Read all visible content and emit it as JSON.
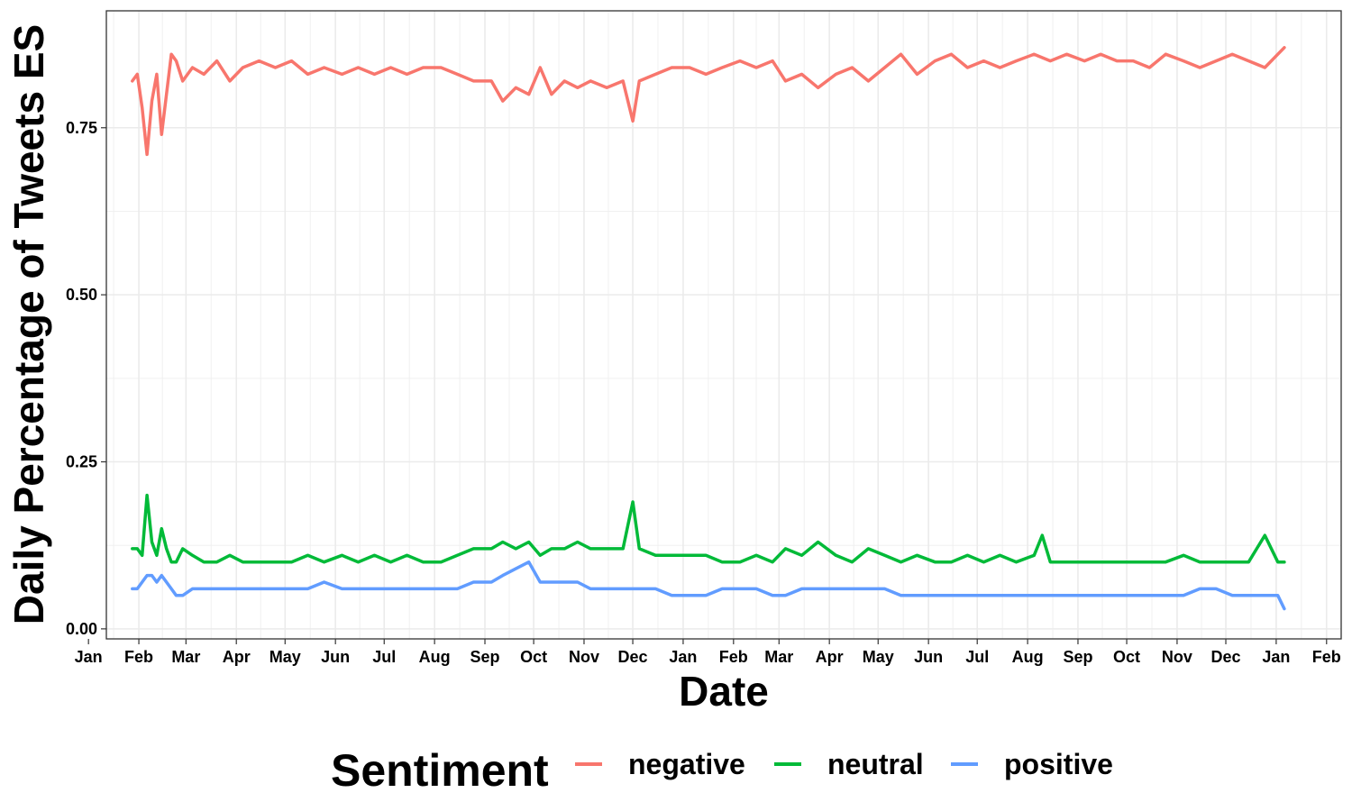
{
  "chart_data": {
    "type": "line",
    "xlabel": "Date",
    "ylabel": "Daily Percentage of Tweets ES",
    "xlim": [
      "2020-01-12",
      "2022-02-10"
    ],
    "ylim": [
      -0.015,
      0.925
    ],
    "y_ticks": [
      0.0,
      0.25,
      0.5,
      0.75
    ],
    "y_tick_labels": [
      "0.00",
      "0.25",
      "0.50",
      "0.75"
    ],
    "x_ticks": [
      "2020-01-01",
      "2020-02-01",
      "2020-03-01",
      "2020-04-01",
      "2020-05-01",
      "2020-06-01",
      "2020-07-01",
      "2020-08-01",
      "2020-09-01",
      "2020-10-01",
      "2020-11-01",
      "2020-12-01",
      "2021-01-01",
      "2021-02-01",
      "2021-03-01",
      "2021-04-01",
      "2021-05-01",
      "2021-06-01",
      "2021-07-01",
      "2021-08-01",
      "2021-09-01",
      "2021-10-01",
      "2021-11-01",
      "2021-12-01",
      "2022-01-01",
      "2022-02-01"
    ],
    "x_tick_labels": [
      "Jan",
      "Feb",
      "Mar",
      "Apr",
      "May",
      "Jun",
      "Jul",
      "Aug",
      "Sep",
      "Oct",
      "Nov",
      "Dec",
      "Jan",
      "Feb",
      "Mar",
      "Apr",
      "May",
      "Jun",
      "Jul",
      "Aug",
      "Sep",
      "Oct",
      "Nov",
      "Dec",
      "Jan",
      "Feb"
    ],
    "grid": true,
    "legend": {
      "title": "Sentiment",
      "position": "bottom"
    },
    "series": [
      {
        "name": "negative",
        "color": "#F8766D",
        "points": [
          [
            "2020-01-28",
            0.82
          ],
          [
            "2020-01-31",
            0.83
          ],
          [
            "2020-02-03",
            0.78
          ],
          [
            "2020-02-06",
            0.71
          ],
          [
            "2020-02-09",
            0.79
          ],
          [
            "2020-02-12",
            0.83
          ],
          [
            "2020-02-15",
            0.74
          ],
          [
            "2020-02-18",
            0.8
          ],
          [
            "2020-02-21",
            0.86
          ],
          [
            "2020-02-24",
            0.85
          ],
          [
            "2020-02-28",
            0.82
          ],
          [
            "2020-03-05",
            0.84
          ],
          [
            "2020-03-12",
            0.83
          ],
          [
            "2020-03-20",
            0.85
          ],
          [
            "2020-03-28",
            0.82
          ],
          [
            "2020-04-05",
            0.84
          ],
          [
            "2020-04-15",
            0.85
          ],
          [
            "2020-04-25",
            0.84
          ],
          [
            "2020-05-05",
            0.85
          ],
          [
            "2020-05-15",
            0.83
          ],
          [
            "2020-05-25",
            0.84
          ],
          [
            "2020-06-05",
            0.83
          ],
          [
            "2020-06-15",
            0.84
          ],
          [
            "2020-06-25",
            0.83
          ],
          [
            "2020-07-05",
            0.84
          ],
          [
            "2020-07-15",
            0.83
          ],
          [
            "2020-07-25",
            0.84
          ],
          [
            "2020-08-05",
            0.84
          ],
          [
            "2020-08-15",
            0.83
          ],
          [
            "2020-08-25",
            0.82
          ],
          [
            "2020-09-05",
            0.82
          ],
          [
            "2020-09-12",
            0.79
          ],
          [
            "2020-09-20",
            0.81
          ],
          [
            "2020-09-28",
            0.8
          ],
          [
            "2020-10-05",
            0.84
          ],
          [
            "2020-10-12",
            0.8
          ],
          [
            "2020-10-20",
            0.82
          ],
          [
            "2020-10-28",
            0.81
          ],
          [
            "2020-11-05",
            0.82
          ],
          [
            "2020-11-15",
            0.81
          ],
          [
            "2020-11-25",
            0.82
          ],
          [
            "2020-12-01",
            0.76
          ],
          [
            "2020-12-05",
            0.82
          ],
          [
            "2020-12-15",
            0.83
          ],
          [
            "2020-12-25",
            0.84
          ],
          [
            "2021-01-05",
            0.84
          ],
          [
            "2021-01-15",
            0.83
          ],
          [
            "2021-01-25",
            0.84
          ],
          [
            "2021-02-05",
            0.85
          ],
          [
            "2021-02-15",
            0.84
          ],
          [
            "2021-02-25",
            0.85
          ],
          [
            "2021-03-05",
            0.82
          ],
          [
            "2021-03-15",
            0.83
          ],
          [
            "2021-03-25",
            0.81
          ],
          [
            "2021-04-05",
            0.83
          ],
          [
            "2021-04-15",
            0.84
          ],
          [
            "2021-04-25",
            0.82
          ],
          [
            "2021-05-05",
            0.84
          ],
          [
            "2021-05-15",
            0.86
          ],
          [
            "2021-05-25",
            0.83
          ],
          [
            "2021-06-05",
            0.85
          ],
          [
            "2021-06-15",
            0.86
          ],
          [
            "2021-06-25",
            0.84
          ],
          [
            "2021-07-05",
            0.85
          ],
          [
            "2021-07-15",
            0.84
          ],
          [
            "2021-07-25",
            0.85
          ],
          [
            "2021-08-05",
            0.86
          ],
          [
            "2021-08-15",
            0.85
          ],
          [
            "2021-08-25",
            0.86
          ],
          [
            "2021-09-05",
            0.85
          ],
          [
            "2021-09-15",
            0.86
          ],
          [
            "2021-09-25",
            0.85
          ],
          [
            "2021-10-05",
            0.85
          ],
          [
            "2021-10-15",
            0.84
          ],
          [
            "2021-10-25",
            0.86
          ],
          [
            "2021-11-05",
            0.85
          ],
          [
            "2021-11-15",
            0.84
          ],
          [
            "2021-11-25",
            0.85
          ],
          [
            "2021-12-05",
            0.86
          ],
          [
            "2021-12-15",
            0.85
          ],
          [
            "2021-12-25",
            0.84
          ],
          [
            "2022-01-02",
            0.86
          ],
          [
            "2022-01-06",
            0.87
          ]
        ]
      },
      {
        "name": "neutral",
        "color": "#00BA38",
        "points": [
          [
            "2020-01-28",
            0.12
          ],
          [
            "2020-01-31",
            0.12
          ],
          [
            "2020-02-03",
            0.11
          ],
          [
            "2020-02-06",
            0.2
          ],
          [
            "2020-02-09",
            0.13
          ],
          [
            "2020-02-12",
            0.11
          ],
          [
            "2020-02-15",
            0.15
          ],
          [
            "2020-02-18",
            0.12
          ],
          [
            "2020-02-21",
            0.1
          ],
          [
            "2020-02-24",
            0.1
          ],
          [
            "2020-02-28",
            0.12
          ],
          [
            "2020-03-05",
            0.11
          ],
          [
            "2020-03-12",
            0.1
          ],
          [
            "2020-03-20",
            0.1
          ],
          [
            "2020-03-28",
            0.11
          ],
          [
            "2020-04-05",
            0.1
          ],
          [
            "2020-04-15",
            0.1
          ],
          [
            "2020-04-25",
            0.1
          ],
          [
            "2020-05-05",
            0.1
          ],
          [
            "2020-05-15",
            0.11
          ],
          [
            "2020-05-25",
            0.1
          ],
          [
            "2020-06-05",
            0.11
          ],
          [
            "2020-06-15",
            0.1
          ],
          [
            "2020-06-25",
            0.11
          ],
          [
            "2020-07-05",
            0.1
          ],
          [
            "2020-07-15",
            0.11
          ],
          [
            "2020-07-25",
            0.1
          ],
          [
            "2020-08-05",
            0.1
          ],
          [
            "2020-08-15",
            0.11
          ],
          [
            "2020-08-25",
            0.12
          ],
          [
            "2020-09-05",
            0.12
          ],
          [
            "2020-09-12",
            0.13
          ],
          [
            "2020-09-20",
            0.12
          ],
          [
            "2020-09-28",
            0.13
          ],
          [
            "2020-10-05",
            0.11
          ],
          [
            "2020-10-12",
            0.12
          ],
          [
            "2020-10-20",
            0.12
          ],
          [
            "2020-10-28",
            0.13
          ],
          [
            "2020-11-05",
            0.12
          ],
          [
            "2020-11-15",
            0.12
          ],
          [
            "2020-11-25",
            0.12
          ],
          [
            "2020-12-01",
            0.19
          ],
          [
            "2020-12-05",
            0.12
          ],
          [
            "2020-12-15",
            0.11
          ],
          [
            "2020-12-25",
            0.11
          ],
          [
            "2021-01-05",
            0.11
          ],
          [
            "2021-01-15",
            0.11
          ],
          [
            "2021-01-25",
            0.1
          ],
          [
            "2021-02-05",
            0.1
          ],
          [
            "2021-02-15",
            0.11
          ],
          [
            "2021-02-25",
            0.1
          ],
          [
            "2021-03-05",
            0.12
          ],
          [
            "2021-03-15",
            0.11
          ],
          [
            "2021-03-25",
            0.13
          ],
          [
            "2021-04-05",
            0.11
          ],
          [
            "2021-04-15",
            0.1
          ],
          [
            "2021-04-25",
            0.12
          ],
          [
            "2021-05-05",
            0.11
          ],
          [
            "2021-05-15",
            0.1
          ],
          [
            "2021-05-25",
            0.11
          ],
          [
            "2021-06-05",
            0.1
          ],
          [
            "2021-06-15",
            0.1
          ],
          [
            "2021-06-25",
            0.11
          ],
          [
            "2021-07-05",
            0.1
          ],
          [
            "2021-07-15",
            0.11
          ],
          [
            "2021-07-25",
            0.1
          ],
          [
            "2021-08-05",
            0.11
          ],
          [
            "2021-08-10",
            0.14
          ],
          [
            "2021-08-15",
            0.1
          ],
          [
            "2021-08-25",
            0.1
          ],
          [
            "2021-09-05",
            0.1
          ],
          [
            "2021-09-15",
            0.1
          ],
          [
            "2021-09-25",
            0.1
          ],
          [
            "2021-10-05",
            0.1
          ],
          [
            "2021-10-15",
            0.1
          ],
          [
            "2021-10-25",
            0.1
          ],
          [
            "2021-11-05",
            0.11
          ],
          [
            "2021-11-15",
            0.1
          ],
          [
            "2021-11-25",
            0.1
          ],
          [
            "2021-12-05",
            0.1
          ],
          [
            "2021-12-15",
            0.1
          ],
          [
            "2021-12-25",
            0.14
          ],
          [
            "2022-01-02",
            0.1
          ],
          [
            "2022-01-06",
            0.1
          ]
        ]
      },
      {
        "name": "positive",
        "color": "#619CFF",
        "points": [
          [
            "2020-01-28",
            0.06
          ],
          [
            "2020-01-31",
            0.06
          ],
          [
            "2020-02-03",
            0.07
          ],
          [
            "2020-02-06",
            0.08
          ],
          [
            "2020-02-09",
            0.08
          ],
          [
            "2020-02-12",
            0.07
          ],
          [
            "2020-02-15",
            0.08
          ],
          [
            "2020-02-18",
            0.07
          ],
          [
            "2020-02-21",
            0.06
          ],
          [
            "2020-02-24",
            0.05
          ],
          [
            "2020-02-28",
            0.05
          ],
          [
            "2020-03-05",
            0.06
          ],
          [
            "2020-03-12",
            0.06
          ],
          [
            "2020-03-20",
            0.06
          ],
          [
            "2020-03-28",
            0.06
          ],
          [
            "2020-04-05",
            0.06
          ],
          [
            "2020-04-15",
            0.06
          ],
          [
            "2020-04-25",
            0.06
          ],
          [
            "2020-05-05",
            0.06
          ],
          [
            "2020-05-15",
            0.06
          ],
          [
            "2020-05-25",
            0.07
          ],
          [
            "2020-06-05",
            0.06
          ],
          [
            "2020-06-15",
            0.06
          ],
          [
            "2020-06-25",
            0.06
          ],
          [
            "2020-07-05",
            0.06
          ],
          [
            "2020-07-15",
            0.06
          ],
          [
            "2020-07-25",
            0.06
          ],
          [
            "2020-08-05",
            0.06
          ],
          [
            "2020-08-15",
            0.06
          ],
          [
            "2020-08-25",
            0.07
          ],
          [
            "2020-09-05",
            0.07
          ],
          [
            "2020-09-12",
            0.08
          ],
          [
            "2020-09-20",
            0.09
          ],
          [
            "2020-09-28",
            0.1
          ],
          [
            "2020-10-05",
            0.07
          ],
          [
            "2020-10-12",
            0.07
          ],
          [
            "2020-10-20",
            0.07
          ],
          [
            "2020-10-28",
            0.07
          ],
          [
            "2020-11-05",
            0.06
          ],
          [
            "2020-11-15",
            0.06
          ],
          [
            "2020-11-25",
            0.06
          ],
          [
            "2020-12-01",
            0.06
          ],
          [
            "2020-12-05",
            0.06
          ],
          [
            "2020-12-15",
            0.06
          ],
          [
            "2020-12-25",
            0.05
          ],
          [
            "2021-01-05",
            0.05
          ],
          [
            "2021-01-15",
            0.05
          ],
          [
            "2021-01-25",
            0.06
          ],
          [
            "2021-02-05",
            0.06
          ],
          [
            "2021-02-15",
            0.06
          ],
          [
            "2021-02-25",
            0.05
          ],
          [
            "2021-03-05",
            0.05
          ],
          [
            "2021-03-15",
            0.06
          ],
          [
            "2021-03-25",
            0.06
          ],
          [
            "2021-04-05",
            0.06
          ],
          [
            "2021-04-15",
            0.06
          ],
          [
            "2021-04-25",
            0.06
          ],
          [
            "2021-05-05",
            0.06
          ],
          [
            "2021-05-15",
            0.05
          ],
          [
            "2021-05-25",
            0.05
          ],
          [
            "2021-06-05",
            0.05
          ],
          [
            "2021-06-15",
            0.05
          ],
          [
            "2021-06-25",
            0.05
          ],
          [
            "2021-07-05",
            0.05
          ],
          [
            "2021-07-15",
            0.05
          ],
          [
            "2021-07-25",
            0.05
          ],
          [
            "2021-08-05",
            0.05
          ],
          [
            "2021-08-15",
            0.05
          ],
          [
            "2021-08-25",
            0.05
          ],
          [
            "2021-09-05",
            0.05
          ],
          [
            "2021-09-15",
            0.05
          ],
          [
            "2021-09-25",
            0.05
          ],
          [
            "2021-10-05",
            0.05
          ],
          [
            "2021-10-15",
            0.05
          ],
          [
            "2021-10-25",
            0.05
          ],
          [
            "2021-11-05",
            0.05
          ],
          [
            "2021-11-15",
            0.06
          ],
          [
            "2021-11-25",
            0.06
          ],
          [
            "2021-12-05",
            0.05
          ],
          [
            "2021-12-15",
            0.05
          ],
          [
            "2021-12-25",
            0.05
          ],
          [
            "2022-01-02",
            0.05
          ],
          [
            "2022-01-06",
            0.03
          ]
        ]
      }
    ]
  }
}
